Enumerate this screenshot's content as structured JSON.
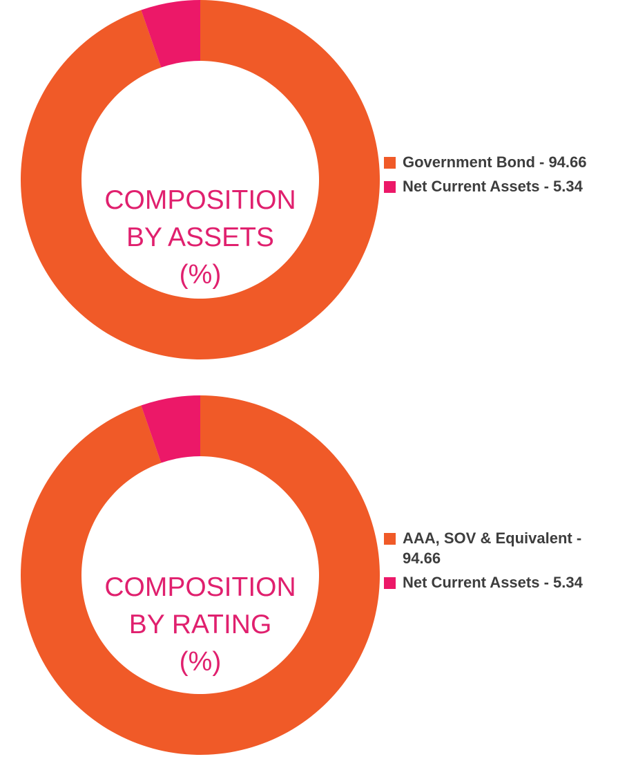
{
  "colors": {
    "primary": "#f05a28",
    "secondary": "#ec1868",
    "title": "#e0206e",
    "legend_text": "#3d3d3d"
  },
  "chart_data": [
    {
      "type": "donut",
      "center_title": [
        "COMPOSITION",
        "BY ASSETS",
        "(%)"
      ],
      "slices": [
        {
          "label": "Government Bond - 94.66",
          "value": 94.66,
          "color": "#f05a28"
        },
        {
          "label": "Net Current Assets - 5.34",
          "value": 5.34,
          "color": "#ec1868"
        }
      ]
    },
    {
      "type": "donut",
      "center_title": [
        "COMPOSITION",
        "BY RATING",
        "(%)"
      ],
      "slices": [
        {
          "label": "AAA, SOV & Equivalent - 94.66",
          "value": 94.66,
          "color": "#f05a28"
        },
        {
          "label": "Net Current Assets - 5.34",
          "value": 5.34,
          "color": "#ec1868"
        }
      ]
    }
  ]
}
